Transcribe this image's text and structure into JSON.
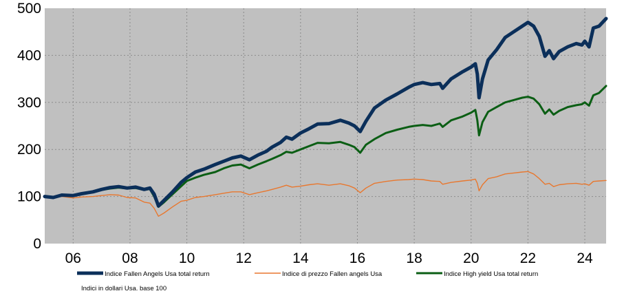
{
  "chart_data": {
    "type": "line",
    "title": "",
    "xlabel": "",
    "ylabel": "",
    "ylim": [
      0,
      500
    ],
    "xlim": [
      2005,
      2024.75
    ],
    "y_ticks": [
      "0",
      "100",
      "200",
      "300",
      "400",
      "500"
    ],
    "x_ticks": [
      {
        "value": 2006,
        "label": "06"
      },
      {
        "value": 2008,
        "label": "08"
      },
      {
        "value": 2010,
        "label": "10"
      },
      {
        "value": 2012,
        "label": "12"
      },
      {
        "value": 2014,
        "label": "14"
      },
      {
        "value": 2016,
        "label": "16"
      },
      {
        "value": 2018,
        "label": "18"
      },
      {
        "value": 2020,
        "label": "20"
      },
      {
        "value": 2022,
        "label": "22"
      },
      {
        "value": 2024,
        "label": "24"
      }
    ],
    "grid": true,
    "legend_position": "bottom",
    "footnote": "Indici in dollari Usa. base 100",
    "colors": {
      "plot_background": "#c0c0c0",
      "grid": "#8a8a8a",
      "fallen_angels_tr": "#0b2f5a",
      "fallen_angels_price": "#e8772e",
      "high_yield_tr": "#0b5e14"
    },
    "series": [
      {
        "name": "Indice Fallen Angels Usa total return",
        "key": "fallen_angels_tr",
        "points": [
          [
            2005.0,
            100
          ],
          [
            2005.3,
            98
          ],
          [
            2005.6,
            103
          ],
          [
            2006.0,
            102
          ],
          [
            2006.3,
            106
          ],
          [
            2006.7,
            110
          ],
          [
            2007.0,
            115
          ],
          [
            2007.3,
            119
          ],
          [
            2007.6,
            121
          ],
          [
            2007.9,
            118
          ],
          [
            2008.2,
            120
          ],
          [
            2008.5,
            115
          ],
          [
            2008.7,
            118
          ],
          [
            2008.85,
            105
          ],
          [
            2009.0,
            80
          ],
          [
            2009.2,
            92
          ],
          [
            2009.5,
            110
          ],
          [
            2009.8,
            130
          ],
          [
            2010.0,
            140
          ],
          [
            2010.3,
            152
          ],
          [
            2010.6,
            158
          ],
          [
            2011.0,
            168
          ],
          [
            2011.3,
            175
          ],
          [
            2011.6,
            182
          ],
          [
            2011.9,
            186
          ],
          [
            2012.2,
            178
          ],
          [
            2012.5,
            188
          ],
          [
            2012.8,
            196
          ],
          [
            2013.0,
            205
          ],
          [
            2013.3,
            215
          ],
          [
            2013.5,
            226
          ],
          [
            2013.7,
            222
          ],
          [
            2014.0,
            235
          ],
          [
            2014.3,
            244
          ],
          [
            2014.6,
            254
          ],
          [
            2015.0,
            255
          ],
          [
            2015.4,
            262
          ],
          [
            2015.7,
            256
          ],
          [
            2015.9,
            250
          ],
          [
            2016.1,
            238
          ],
          [
            2016.3,
            260
          ],
          [
            2016.6,
            288
          ],
          [
            2017.0,
            305
          ],
          [
            2017.4,
            318
          ],
          [
            2017.8,
            332
          ],
          [
            2018.0,
            338
          ],
          [
            2018.3,
            342
          ],
          [
            2018.6,
            338
          ],
          [
            2018.9,
            340
          ],
          [
            2019.0,
            330
          ],
          [
            2019.3,
            350
          ],
          [
            2019.7,
            365
          ],
          [
            2020.0,
            375
          ],
          [
            2020.15,
            382
          ],
          [
            2020.22,
            360
          ],
          [
            2020.28,
            310
          ],
          [
            2020.4,
            350
          ],
          [
            2020.6,
            390
          ],
          [
            2020.9,
            412
          ],
          [
            2021.2,
            438
          ],
          [
            2021.5,
            450
          ],
          [
            2021.8,
            462
          ],
          [
            2022.0,
            470
          ],
          [
            2022.2,
            462
          ],
          [
            2022.4,
            440
          ],
          [
            2022.6,
            398
          ],
          [
            2022.75,
            410
          ],
          [
            2022.9,
            393
          ],
          [
            2023.1,
            408
          ],
          [
            2023.4,
            418
          ],
          [
            2023.7,
            425
          ],
          [
            2023.9,
            422
          ],
          [
            2024.0,
            430
          ],
          [
            2024.15,
            418
          ],
          [
            2024.3,
            458
          ],
          [
            2024.5,
            462
          ],
          [
            2024.75,
            478
          ]
        ]
      },
      {
        "name": "Indice di prezzo Fallen angels Usa",
        "key": "fallen_angels_price",
        "points": [
          [
            2005.0,
            100
          ],
          [
            2005.3,
            97
          ],
          [
            2005.6,
            100
          ],
          [
            2006.0,
            97
          ],
          [
            2006.3,
            99
          ],
          [
            2006.7,
            100
          ],
          [
            2007.0,
            102
          ],
          [
            2007.3,
            104
          ],
          [
            2007.6,
            103
          ],
          [
            2007.9,
            98
          ],
          [
            2008.2,
            97
          ],
          [
            2008.5,
            88
          ],
          [
            2008.7,
            86
          ],
          [
            2008.85,
            75
          ],
          [
            2009.0,
            58
          ],
          [
            2009.2,
            65
          ],
          [
            2009.5,
            78
          ],
          [
            2009.8,
            90
          ],
          [
            2010.0,
            92
          ],
          [
            2010.3,
            98
          ],
          [
            2010.6,
            100
          ],
          [
            2011.0,
            104
          ],
          [
            2011.3,
            107
          ],
          [
            2011.6,
            110
          ],
          [
            2011.9,
            110
          ],
          [
            2012.2,
            104
          ],
          [
            2012.5,
            108
          ],
          [
            2012.8,
            112
          ],
          [
            2013.0,
            115
          ],
          [
            2013.3,
            120
          ],
          [
            2013.5,
            124
          ],
          [
            2013.7,
            120
          ],
          [
            2014.0,
            122
          ],
          [
            2014.3,
            125
          ],
          [
            2014.6,
            127
          ],
          [
            2015.0,
            124
          ],
          [
            2015.4,
            127
          ],
          [
            2015.7,
            123
          ],
          [
            2015.9,
            118
          ],
          [
            2016.1,
            108
          ],
          [
            2016.3,
            118
          ],
          [
            2016.6,
            128
          ],
          [
            2017.0,
            132
          ],
          [
            2017.4,
            135
          ],
          [
            2017.8,
            136
          ],
          [
            2018.0,
            137
          ],
          [
            2018.3,
            136
          ],
          [
            2018.6,
            133
          ],
          [
            2018.9,
            132
          ],
          [
            2019.0,
            126
          ],
          [
            2019.3,
            130
          ],
          [
            2019.7,
            133
          ],
          [
            2020.0,
            135
          ],
          [
            2020.15,
            137
          ],
          [
            2020.22,
            128
          ],
          [
            2020.28,
            112
          ],
          [
            2020.4,
            125
          ],
          [
            2020.6,
            138
          ],
          [
            2020.9,
            142
          ],
          [
            2021.2,
            148
          ],
          [
            2021.5,
            150
          ],
          [
            2021.8,
            152
          ],
          [
            2022.0,
            153
          ],
          [
            2022.2,
            148
          ],
          [
            2022.4,
            138
          ],
          [
            2022.6,
            126
          ],
          [
            2022.75,
            128
          ],
          [
            2022.9,
            121
          ],
          [
            2023.1,
            125
          ],
          [
            2023.4,
            127
          ],
          [
            2023.7,
            128
          ],
          [
            2023.9,
            126
          ],
          [
            2024.0,
            127
          ],
          [
            2024.15,
            124
          ],
          [
            2024.3,
            132
          ],
          [
            2024.5,
            133
          ],
          [
            2024.75,
            134
          ]
        ]
      },
      {
        "name": "Indice High yield Usa total return",
        "key": "high_yield_tr",
        "points": [
          [
            2005.0,
            100
          ],
          [
            2005.3,
            99
          ],
          [
            2005.6,
            102
          ],
          [
            2006.0,
            103
          ],
          [
            2006.3,
            106
          ],
          [
            2006.7,
            109
          ],
          [
            2007.0,
            114
          ],
          [
            2007.3,
            117
          ],
          [
            2007.6,
            119
          ],
          [
            2007.9,
            117
          ],
          [
            2008.2,
            118
          ],
          [
            2008.5,
            114
          ],
          [
            2008.7,
            116
          ],
          [
            2008.85,
            100
          ],
          [
            2009.0,
            78
          ],
          [
            2009.2,
            88
          ],
          [
            2009.5,
            105
          ],
          [
            2009.8,
            122
          ],
          [
            2010.0,
            133
          ],
          [
            2010.3,
            140
          ],
          [
            2010.6,
            146
          ],
          [
            2011.0,
            152
          ],
          [
            2011.3,
            160
          ],
          [
            2011.6,
            166
          ],
          [
            2011.9,
            168
          ],
          [
            2012.2,
            160
          ],
          [
            2012.5,
            168
          ],
          [
            2012.8,
            175
          ],
          [
            2013.0,
            180
          ],
          [
            2013.3,
            188
          ],
          [
            2013.5,
            195
          ],
          [
            2013.7,
            193
          ],
          [
            2014.0,
            200
          ],
          [
            2014.3,
            207
          ],
          [
            2014.6,
            214
          ],
          [
            2015.0,
            213
          ],
          [
            2015.4,
            216
          ],
          [
            2015.7,
            210
          ],
          [
            2015.9,
            205
          ],
          [
            2016.1,
            193
          ],
          [
            2016.3,
            210
          ],
          [
            2016.6,
            222
          ],
          [
            2017.0,
            235
          ],
          [
            2017.4,
            242
          ],
          [
            2017.8,
            248
          ],
          [
            2018.0,
            250
          ],
          [
            2018.3,
            252
          ],
          [
            2018.6,
            250
          ],
          [
            2018.9,
            255
          ],
          [
            2019.0,
            248
          ],
          [
            2019.3,
            262
          ],
          [
            2019.7,
            270
          ],
          [
            2020.0,
            278
          ],
          [
            2020.15,
            284
          ],
          [
            2020.22,
            262
          ],
          [
            2020.28,
            230
          ],
          [
            2020.4,
            258
          ],
          [
            2020.6,
            280
          ],
          [
            2020.9,
            290
          ],
          [
            2021.2,
            300
          ],
          [
            2021.5,
            305
          ],
          [
            2021.8,
            310
          ],
          [
            2022.0,
            312
          ],
          [
            2022.2,
            308
          ],
          [
            2022.4,
            296
          ],
          [
            2022.6,
            276
          ],
          [
            2022.75,
            285
          ],
          [
            2022.9,
            274
          ],
          [
            2023.1,
            282
          ],
          [
            2023.4,
            290
          ],
          [
            2023.7,
            294
          ],
          [
            2023.9,
            296
          ],
          [
            2024.0,
            300
          ],
          [
            2024.15,
            293
          ],
          [
            2024.3,
            315
          ],
          [
            2024.5,
            320
          ],
          [
            2024.75,
            335
          ]
        ]
      }
    ]
  }
}
